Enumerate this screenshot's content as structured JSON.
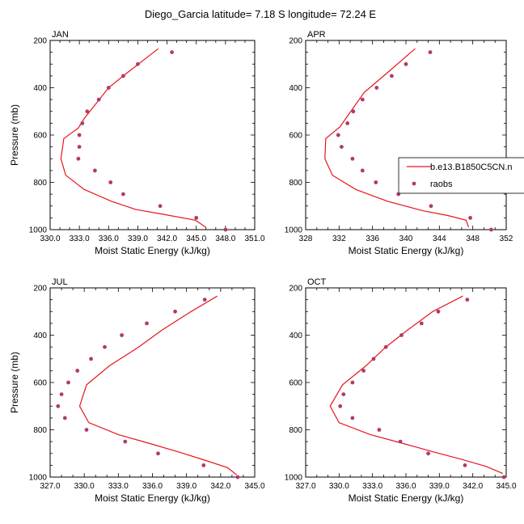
{
  "title": "Diego_Garcia  latitude= 7.18 S longitude= 72.24 E",
  "colors": {
    "model": "#e8141c",
    "obs": "#b03a6a"
  },
  "legend": {
    "entries": [
      {
        "label": "b.e13.B1850C5CN.n",
        "kind": "line"
      },
      {
        "label": "raobs",
        "kind": "marker"
      }
    ]
  },
  "chart_data": [
    {
      "type": "line",
      "panel": "JAN",
      "xlabel": "Moist Static Energy (kJ/kg)",
      "ylabel": "Pressure (mb)",
      "xlim": [
        330.0,
        351.0
      ],
      "ylim": [
        1000,
        200
      ],
      "x_ticks": [
        "330.0",
        "333.0",
        "336.0",
        "339.0",
        "342.0",
        "345.0",
        "348.0",
        "351.0"
      ],
      "y_ticks": [
        "200",
        "400",
        "600",
        "800",
        "1000"
      ],
      "series": [
        {
          "name": "b.e13.B1850C5CN.n",
          "style": "line",
          "points": [
            [
              341.1,
              235
            ],
            [
              337.5,
              350
            ],
            [
              336.0,
              400
            ],
            [
              333.5,
              530
            ],
            [
              332.9,
              570
            ],
            [
              331.4,
              615
            ],
            [
              331.1,
              700
            ],
            [
              331.6,
              770
            ],
            [
              333.5,
              830
            ],
            [
              336.3,
              880
            ],
            [
              338.8,
              915
            ],
            [
              341.6,
              935
            ],
            [
              344.9,
              960
            ],
            [
              346.0,
              990
            ]
          ]
        },
        {
          "name": "raobs",
          "style": "marker",
          "points": [
            [
              342.5,
              250
            ],
            [
              339.0,
              300
            ],
            [
              337.5,
              350
            ],
            [
              336.0,
              400
            ],
            [
              335.0,
              450
            ],
            [
              333.8,
              500
            ],
            [
              333.3,
              550
            ],
            [
              333.0,
              600
            ],
            [
              333.0,
              650
            ],
            [
              332.9,
              700
            ],
            [
              334.6,
              750
            ],
            [
              336.2,
              800
            ],
            [
              337.5,
              850
            ],
            [
              341.3,
              900
            ],
            [
              345.0,
              950
            ],
            [
              348.0,
              1000
            ]
          ]
        }
      ]
    },
    {
      "type": "line",
      "panel": "APR",
      "xlabel": "Moist Static Energy (kJ/kg)",
      "ylabel": "",
      "xlim": [
        328,
        352
      ],
      "ylim": [
        1000,
        200
      ],
      "x_ticks": [
        "328",
        "332",
        "336",
        "340",
        "344",
        "348",
        "352"
      ],
      "y_ticks": [
        "200",
        "400",
        "600",
        "800",
        "1000"
      ],
      "series": [
        {
          "name": "b.e13.B1850C5CN.n",
          "style": "line",
          "points": [
            [
              341.1,
              235
            ],
            [
              338.0,
              330
            ],
            [
              335.0,
              420
            ],
            [
              333.0,
              520
            ],
            [
              332.1,
              565
            ],
            [
              330.4,
              615
            ],
            [
              330.3,
              700
            ],
            [
              331.2,
              770
            ],
            [
              334.0,
              830
            ],
            [
              337.8,
              880
            ],
            [
              342.0,
              920
            ],
            [
              345.0,
              940
            ],
            [
              347.2,
              960
            ],
            [
              347.5,
              990
            ]
          ]
        },
        {
          "name": "raobs",
          "style": "marker",
          "points": [
            [
              342.9,
              250
            ],
            [
              340.0,
              300
            ],
            [
              338.3,
              350
            ],
            [
              336.5,
              400
            ],
            [
              334.8,
              450
            ],
            [
              333.7,
              500
            ],
            [
              333.0,
              550
            ],
            [
              331.9,
              600
            ],
            [
              332.3,
              650
            ],
            [
              333.6,
              700
            ],
            [
              334.8,
              750
            ],
            [
              336.4,
              800
            ],
            [
              339.1,
              850
            ],
            [
              343.0,
              900
            ],
            [
              347.7,
              950
            ],
            [
              350.2,
              1000
            ]
          ]
        }
      ]
    },
    {
      "type": "line",
      "panel": "JUL",
      "xlabel": "Moist Static Energy (kJ/kg)",
      "ylabel": "Pressure (mb)",
      "xlim": [
        327.0,
        345.0
      ],
      "ylim": [
        1000,
        200
      ],
      "x_ticks": [
        "327.0",
        "330.0",
        "333.0",
        "336.0",
        "339.0",
        "342.0",
        "345.0"
      ],
      "y_ticks": [
        "200",
        "400",
        "600",
        "800",
        "1000"
      ],
      "series": [
        {
          "name": "b.e13.B1850C5CN.n",
          "style": "line",
          "points": [
            [
              341.7,
              235
            ],
            [
              339.4,
              300
            ],
            [
              336.8,
              380
            ],
            [
              334.8,
              450
            ],
            [
              332.2,
              530
            ],
            [
              330.2,
              610
            ],
            [
              329.6,
              700
            ],
            [
              330.4,
              770
            ],
            [
              333.0,
              820
            ],
            [
              335.9,
              860
            ],
            [
              338.4,
              895
            ],
            [
              340.7,
              930
            ],
            [
              342.6,
              960
            ],
            [
              343.4,
              990
            ]
          ]
        },
        {
          "name": "raobs",
          "style": "marker",
          "points": [
            [
              340.6,
              250
            ],
            [
              338.0,
              300
            ],
            [
              335.5,
              350
            ],
            [
              333.3,
              400
            ],
            [
              331.8,
              450
            ],
            [
              330.6,
              500
            ],
            [
              329.4,
              550
            ],
            [
              328.6,
              600
            ],
            [
              328.0,
              650
            ],
            [
              327.7,
              700
            ],
            [
              328.3,
              750
            ],
            [
              330.2,
              800
            ],
            [
              333.6,
              850
            ],
            [
              336.5,
              900
            ],
            [
              340.5,
              950
            ],
            [
              343.5,
              1000
            ]
          ]
        }
      ]
    },
    {
      "type": "line",
      "panel": "OCT",
      "xlabel": "Moist Static Energy (kJ/kg)",
      "ylabel": "",
      "xlim": [
        327.0,
        345.0
      ],
      "ylim": [
        1000,
        200
      ],
      "x_ticks": [
        "327.0",
        "330.0",
        "333.0",
        "336.0",
        "339.0",
        "342.0",
        "345.0"
      ],
      "y_ticks": [
        "200",
        "400",
        "600",
        "800",
        "1000"
      ],
      "series": [
        {
          "name": "b.e13.B1850C5CN.n",
          "style": "line",
          "points": [
            [
              341.1,
              235
            ],
            [
              338.4,
              300
            ],
            [
              336.1,
              380
            ],
            [
              334.2,
              450
            ],
            [
              332.4,
              530
            ],
            [
              330.3,
              610
            ],
            [
              329.2,
              700
            ],
            [
              330.0,
              770
            ],
            [
              332.8,
              820
            ],
            [
              335.9,
              860
            ],
            [
              338.6,
              895
            ],
            [
              341.0,
              925
            ],
            [
              343.2,
              955
            ],
            [
              344.7,
              985
            ]
          ]
        },
        {
          "name": "raobs",
          "style": "marker",
          "points": [
            [
              341.5,
              250
            ],
            [
              338.9,
              300
            ],
            [
              337.4,
              350
            ],
            [
              335.6,
              400
            ],
            [
              334.2,
              450
            ],
            [
              333.1,
              500
            ],
            [
              332.2,
              550
            ],
            [
              331.2,
              600
            ],
            [
              330.4,
              650
            ],
            [
              330.1,
              700
            ],
            [
              331.2,
              750
            ],
            [
              333.6,
              800
            ],
            [
              335.5,
              850
            ],
            [
              338.0,
              900
            ],
            [
              341.3,
              950
            ],
            [
              344.8,
              1000
            ]
          ]
        }
      ]
    }
  ]
}
